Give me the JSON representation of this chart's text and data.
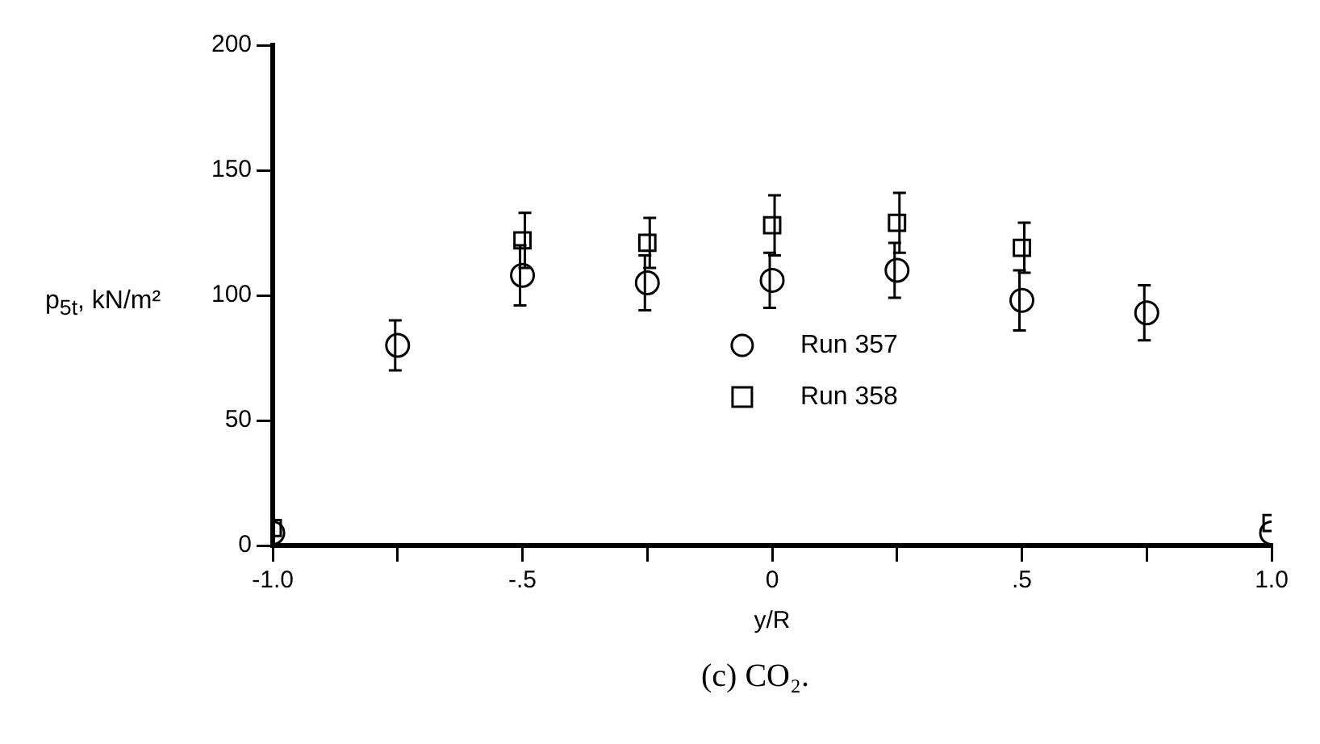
{
  "chart_data": {
    "type": "scatter",
    "ylabel": "p$_{5t}$, kN/m²",
    "xlabel": "y/R",
    "annotations": [
      "(c) CO₂."
    ],
    "xlim": [
      -1,
      1
    ],
    "xticks": [
      {
        "value": -1,
        "label": "-1.0"
      },
      {
        "value": -0.75,
        "label": null
      },
      {
        "value": -0.5,
        "label": "-.5"
      },
      {
        "value": -0.25,
        "label": null
      },
      {
        "value": 0,
        "label": "0"
      },
      {
        "value": 0.25,
        "label": null
      },
      {
        "value": 0.5,
        "label": ".5"
      },
      {
        "value": 0.75,
        "label": null
      },
      {
        "value": 1,
        "label": "1.0"
      }
    ],
    "ylim": [
      0,
      200
    ],
    "yticks": [
      0,
      50,
      100,
      150,
      200
    ],
    "grid": false,
    "legend": "center",
    "series": [
      {
        "name": "Run 357",
        "color": "#000000",
        "marker": "circle",
        "x": [
          -1,
          -0.75,
          -0.5,
          -0.25,
          0,
          0.25,
          0.5,
          0.75,
          1
        ],
        "values": [
          5,
          80,
          108,
          105,
          106,
          110,
          98,
          93,
          5
        ],
        "errors": [
          null,
          10,
          12,
          11,
          11,
          11,
          12,
          11,
          null
        ]
      },
      {
        "name": "Run 358",
        "color": "#000000",
        "marker": "square",
        "x": [
          -1,
          -0.5,
          -0.25,
          0,
          0.25,
          0.5,
          1
        ],
        "values": [
          7,
          122,
          121,
          128,
          129,
          119,
          9
        ],
        "errors": [
          null,
          11,
          10,
          12,
          12,
          10,
          null
        ]
      }
    ]
  }
}
